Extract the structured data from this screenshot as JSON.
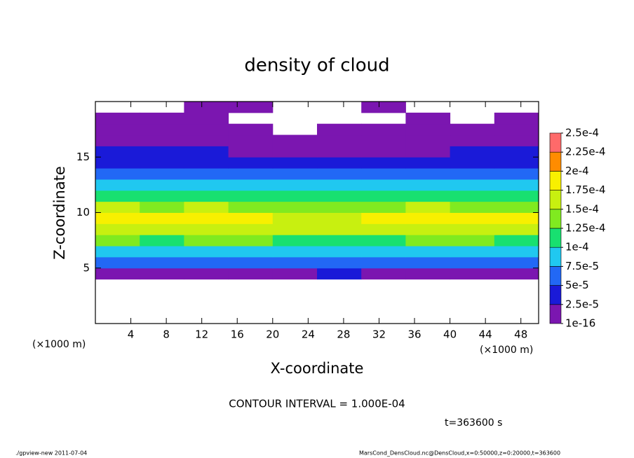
{
  "chart_data": {
    "type": "heatmap",
    "title": "density of cloud",
    "x_label": "X-coordinate",
    "y_label": "Z-coordinate",
    "x_unit_left": "(×1000 m)",
    "x_unit_right": "(×1000 m)",
    "contour_note": "CONTOUR INTERVAL = 1.000E-04",
    "time_note": "t=363600 s",
    "footer_left": "./gpview-new  2011-07-04",
    "footer_right": "MarsCond_DensCloud.nc@DensCloud,x=0:50000,z=0:20000,t=363600",
    "xlim": [
      0,
      50
    ],
    "ylim": [
      0,
      20
    ],
    "xticks": [
      4,
      8,
      12,
      16,
      20,
      24,
      28,
      32,
      36,
      40,
      44,
      48
    ],
    "yticks": [
      5,
      10,
      15
    ],
    "x": [
      2.5,
      7.5,
      12.5,
      17.5,
      22.5,
      27.5,
      32.5,
      37.5,
      42.5,
      47.5
    ],
    "y": [
      0.5,
      1.5,
      2.5,
      3.5,
      4.5,
      5.5,
      6.5,
      7.5,
      8.5,
      9.5,
      10.5,
      11.5,
      12.5,
      13.5,
      14.5,
      15.5,
      16.5,
      17.5,
      18.5,
      19.5
    ],
    "z": [
      [
        null,
        null,
        null,
        null,
        null,
        null,
        null,
        null,
        null,
        null
      ],
      [
        null,
        null,
        null,
        null,
        null,
        null,
        null,
        null,
        null,
        null
      ],
      [
        null,
        null,
        null,
        null,
        null,
        null,
        null,
        null,
        null,
        null
      ],
      [
        null,
        null,
        null,
        null,
        null,
        null,
        null,
        null,
        null,
        null
      ],
      [
        1e-05,
        1e-05,
        1e-05,
        1e-05,
        1e-05,
        3e-05,
        1e-05,
        1e-05,
        1e-05,
        1e-05
      ],
      [
        6e-05,
        6e-05,
        6e-05,
        6e-05,
        7e-05,
        5e-05,
        6e-05,
        6e-05,
        6e-05,
        6e-05
      ],
      [
        9e-05,
        9e-05,
        9e-05,
        9e-05,
        9e-05,
        8e-05,
        9e-05,
        9e-05,
        9e-05,
        9e-05
      ],
      [
        0.00013,
        0.00012,
        0.00013,
        0.00013,
        0.00012,
        0.00011,
        0.00012,
        0.00013,
        0.00013,
        0.00012
      ],
      [
        0.00017,
        0.00016,
        0.00017,
        0.00016,
        0.00015,
        0.00015,
        0.00016,
        0.00017,
        0.00016,
        0.00017
      ],
      [
        0.00019,
        0.00018,
        0.00019,
        0.00018,
        0.00017,
        0.00016,
        0.00018,
        0.00019,
        0.00018,
        0.00018
      ],
      [
        0.00015,
        0.00014,
        0.00015,
        0.00014,
        0.00014,
        0.00014,
        0.00014,
        0.00015,
        0.00014,
        0.00014
      ],
      [
        0.00011,
        0.00011,
        0.00012,
        0.00011,
        0.00011,
        0.00011,
        0.00011,
        0.00011,
        0.00011,
        0.00011
      ],
      [
        8e-05,
        8e-05,
        8e-05,
        8e-05,
        8e-05,
        8e-05,
        8e-05,
        8e-05,
        8e-05,
        8e-05
      ],
      [
        6e-05,
        6e-05,
        5e-05,
        5e-05,
        5e-05,
        5e-05,
        5e-05,
        6e-05,
        6e-05,
        6e-05
      ],
      [
        4e-05,
        4e-05,
        4e-05,
        3e-05,
        3e-05,
        3e-05,
        3e-05,
        4e-05,
        4e-05,
        4e-05
      ],
      [
        3e-05,
        3e-05,
        3e-05,
        2e-05,
        2e-05,
        2e-05,
        2e-05,
        2e-05,
        3e-05,
        3e-05
      ],
      [
        2e-05,
        2e-05,
        2e-05,
        1e-05,
        5e-06,
        5e-06,
        1e-05,
        1e-05,
        1e-05,
        2e-05
      ],
      [
        1e-05,
        1e-05,
        5e-06,
        5e-06,
        null,
        5e-06,
        5e-06,
        5e-06,
        5e-06,
        1e-05
      ],
      [
        5e-06,
        5e-06,
        5e-06,
        null,
        null,
        null,
        null,
        5e-06,
        null,
        5e-06
      ],
      [
        null,
        null,
        5e-06,
        5e-06,
        null,
        null,
        5e-06,
        null,
        null,
        null
      ]
    ],
    "colorbar_ticks": [
      {
        "value": 1e-16,
        "label": "1e-16"
      },
      {
        "value": 2.5e-05,
        "label": "2.5e-5"
      },
      {
        "value": 5e-05,
        "label": "5e-5"
      },
      {
        "value": 7.5e-05,
        "label": "7.5e-5"
      },
      {
        "value": 0.0001,
        "label": "1e-4"
      },
      {
        "value": 0.000125,
        "label": "1.25e-4"
      },
      {
        "value": 0.00015,
        "label": "1.5e-4"
      },
      {
        "value": 0.000175,
        "label": "1.75e-4"
      },
      {
        "value": 0.0002,
        "label": "2e-4"
      },
      {
        "value": 0.000225,
        "label": "2.25e-4"
      },
      {
        "value": 0.00025,
        "label": "2.5e-4"
      }
    ],
    "colors": [
      "#7b16b0",
      "#1a1ad8",
      "#2268f5",
      "#20c8f0",
      "#18e070",
      "#80ea20",
      "#c8f010",
      "#f8f000",
      "#ff8c00",
      "#ff6a6a"
    ]
  }
}
